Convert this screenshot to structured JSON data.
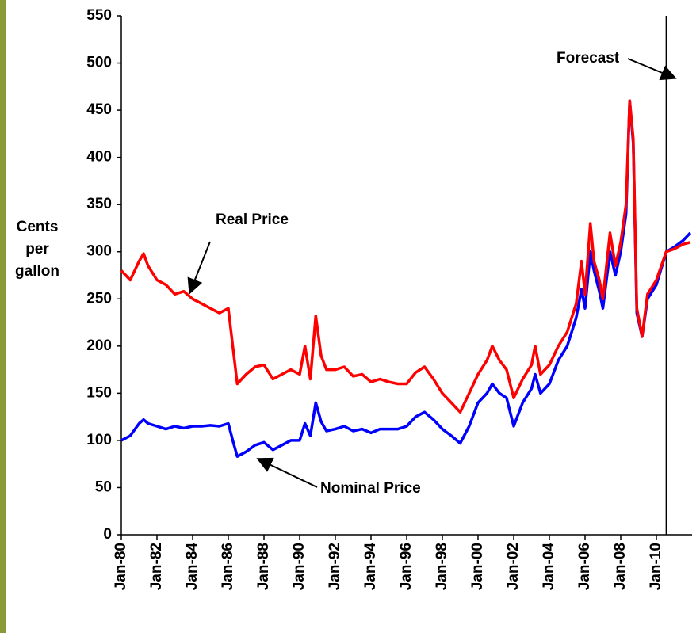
{
  "chart_data": {
    "type": "line",
    "ylabel": [
      "Cents",
      "per",
      "gallon"
    ],
    "annotations": {
      "real": "Real Price",
      "nominal": "Nominal Price",
      "forecast": "Forecast"
    },
    "forecast_x": 2010.55,
    "xlim": [
      1980,
      2012
    ],
    "xticks": [
      {
        "value": 1980,
        "label": "Jan-80"
      },
      {
        "value": 1982,
        "label": "Jan-82"
      },
      {
        "value": 1984,
        "label": "Jan-84"
      },
      {
        "value": 1986,
        "label": "Jan-86"
      },
      {
        "value": 1988,
        "label": "Jan-88"
      },
      {
        "value": 1990,
        "label": "Jan-90"
      },
      {
        "value": 1992,
        "label": "Jan-92"
      },
      {
        "value": 1994,
        "label": "Jan-94"
      },
      {
        "value": 1996,
        "label": "Jan-96"
      },
      {
        "value": 1998,
        "label": "Jan-98"
      },
      {
        "value": 2000,
        "label": "Jan-00"
      },
      {
        "value": 2002,
        "label": "Jan-02"
      },
      {
        "value": 2004,
        "label": "Jan-04"
      },
      {
        "value": 2006,
        "label": "Jan-06"
      },
      {
        "value": 2008,
        "label": "Jan-08"
      },
      {
        "value": 2010,
        "label": "Jan-10"
      }
    ],
    "ylim": [
      0,
      550
    ],
    "yticks": [
      0,
      50,
      100,
      150,
      200,
      250,
      300,
      350,
      400,
      450,
      500,
      550
    ],
    "x": [
      1980,
      1980.5,
      1981,
      1981.25,
      1981.5,
      1982,
      1982.5,
      1983,
      1983.5,
      1984,
      1984.5,
      1985,
      1985.5,
      1986,
      1986.25,
      1986.5,
      1987,
      1987.5,
      1988,
      1988.5,
      1989,
      1989.5,
      1990,
      1990.3,
      1990.6,
      1990.9,
      1991.2,
      1991.5,
      1992,
      1992.5,
      1993,
      1993.5,
      1994,
      1994.5,
      1995,
      1995.5,
      1996,
      1996.5,
      1997,
      1997.5,
      1998,
      1998.5,
      1999,
      1999.5,
      2000,
      2000.5,
      2000.8,
      2001.2,
      2001.6,
      2002,
      2002.5,
      2003,
      2003.2,
      2003.5,
      2004,
      2004.5,
      2005,
      2005.5,
      2005.8,
      2006,
      2006.3,
      2006.5,
      2006.8,
      2007,
      2007.4,
      2007.7,
      2008,
      2008.3,
      2008.5,
      2008.7,
      2008.9,
      2009.2,
      2009.5,
      2010,
      2010.55,
      2011,
      2011.5,
      2011.9
    ],
    "series": [
      {
        "name": "Nominal Price",
        "color": "#0000ff",
        "values": [
          100,
          105,
          118,
          122,
          118,
          115,
          112,
          115,
          113,
          115,
          115,
          116,
          115,
          118,
          100,
          83,
          88,
          95,
          98,
          90,
          95,
          100,
          100,
          118,
          105,
          140,
          120,
          110,
          112,
          115,
          110,
          112,
          108,
          112,
          112,
          112,
          115,
          125,
          130,
          122,
          112,
          105,
          97,
          115,
          140,
          150,
          160,
          150,
          145,
          115,
          140,
          155,
          170,
          150,
          160,
          185,
          200,
          230,
          260,
          240,
          300,
          280,
          258,
          240,
          300,
          275,
          300,
          340,
          460,
          415,
          235,
          210,
          250,
          265,
          300,
          305,
          312,
          320
        ]
      },
      {
        "name": "Real Price",
        "color": "#ff0000",
        "values": [
          280,
          270,
          290,
          298,
          285,
          270,
          265,
          255,
          258,
          250,
          245,
          240,
          235,
          240,
          200,
          160,
          170,
          178,
          180,
          165,
          170,
          175,
          170,
          200,
          165,
          232,
          190,
          175,
          175,
          178,
          168,
          170,
          162,
          165,
          162,
          160,
          160,
          172,
          178,
          165,
          150,
          140,
          130,
          150,
          170,
          185,
          200,
          185,
          175,
          145,
          165,
          180,
          200,
          170,
          180,
          200,
          215,
          245,
          290,
          255,
          330,
          290,
          270,
          250,
          320,
          285,
          310,
          350,
          460,
          420,
          240,
          210,
          255,
          270,
          300,
          303,
          308,
          310
        ]
      }
    ]
  }
}
